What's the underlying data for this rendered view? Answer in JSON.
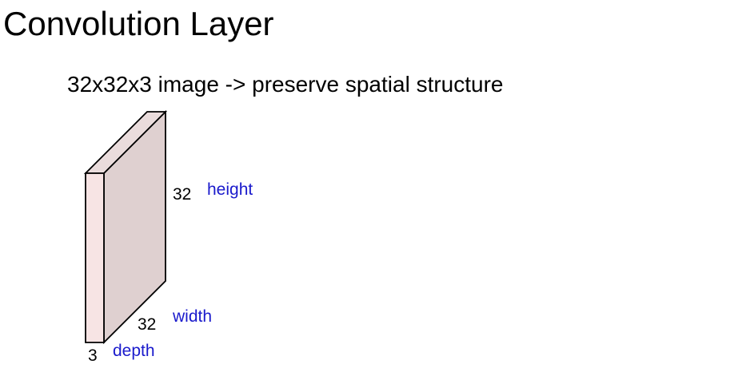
{
  "title": "Convolution Layer",
  "subtitle": "32x32x3 image -> preserve spatial structure",
  "volume": {
    "height": {
      "value": "32",
      "label": "height"
    },
    "width": {
      "value": "32",
      "label": "width"
    },
    "depth": {
      "value": "3",
      "label": "depth"
    }
  },
  "colors": {
    "front_face": "#f7e4e4",
    "side_face": "#dfd0d0",
    "top_face": "#eadcdc",
    "edge": "#000000",
    "dimension_label": "#1a1acc"
  }
}
